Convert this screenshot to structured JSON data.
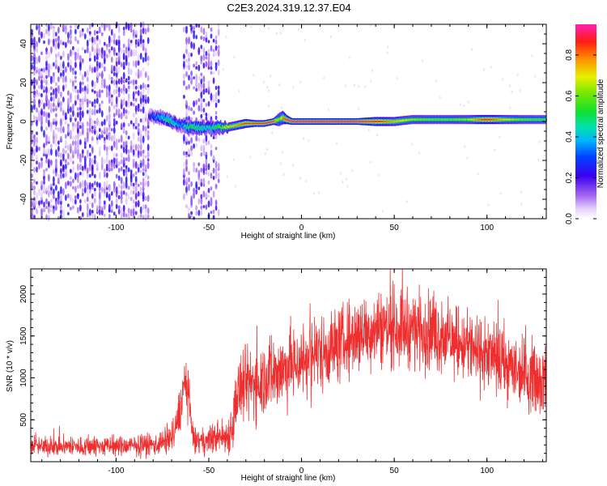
{
  "title": "C2E3.2024.319.12.37.E04",
  "colors": {
    "snr_line": "#ee2f2f",
    "axis": "#000000",
    "colormap": [
      "#ffffff",
      "#cf9ef7",
      "#7a2be0",
      "#4b00e8",
      "#0030ff",
      "#00c8ff",
      "#00e08a",
      "#29e02b",
      "#d6f000",
      "#ff8a00",
      "#ff2000",
      "#ff1fb4"
    ]
  },
  "chart_data": [
    {
      "type": "heatmap",
      "title": "C2E3.2024.319.12.37.E04",
      "xlabel": "Height of straight line (km)",
      "ylabel": "Frequency (Hz)",
      "xlim": [
        -146,
        132
      ],
      "ylim": [
        -50,
        50
      ],
      "xticks": [
        -100,
        -50,
        0,
        50,
        100
      ],
      "yticks": [
        -40,
        -20,
        0,
        20,
        40
      ],
      "grid": false,
      "colorbar": {
        "label": "Normalized spectral amplitude",
        "range": [
          0,
          0.95
        ],
        "ticks": [
          0.0,
          0.2,
          0.4,
          0.6,
          0.8
        ]
      },
      "noise_regions_x": [
        [
          -146,
          -82
        ],
        [
          -64,
          -44
        ]
      ],
      "ridge": {
        "x": [
          -82,
          -75,
          -70,
          -65,
          -60,
          -55,
          -50,
          -45,
          -40,
          -35,
          -30,
          -25,
          -20,
          -15,
          -12,
          -10,
          -8,
          -5,
          0,
          10,
          20,
          30,
          40,
          50,
          60,
          70,
          80,
          90,
          100,
          110,
          120,
          132
        ],
        "freq": [
          3,
          2,
          0,
          -2,
          -3,
          -3,
          -3,
          -3,
          -3,
          -2,
          -1,
          -1,
          -1,
          0,
          1,
          2,
          1,
          0,
          0,
          0,
          0,
          0,
          0,
          0,
          1,
          1,
          1,
          1,
          1,
          1,
          1,
          1
        ],
        "amplitude": [
          0.25,
          0.45,
          0.5,
          0.35,
          0.55,
          0.5,
          0.45,
          0.55,
          0.7,
          0.75,
          0.85,
          0.85,
          0.9,
          0.9,
          0.6,
          0.75,
          0.9,
          0.95,
          0.95,
          0.95,
          0.95,
          0.95,
          0.9,
          0.75,
          0.65,
          0.6,
          0.6,
          0.65,
          0.9,
          0.7,
          0.6,
          0.55
        ],
        "halfwidth": [
          3,
          3,
          3,
          3,
          3,
          3,
          3,
          3,
          2,
          2,
          2,
          1.5,
          1.5,
          1.5,
          3,
          3,
          2,
          1.5,
          1.5,
          1.5,
          1.5,
          1.5,
          2,
          2,
          2,
          2,
          2,
          2,
          2,
          2,
          2,
          2
        ]
      }
    },
    {
      "type": "line",
      "xlabel": "Height of straight line (km)",
      "ylabel": "SNR (10 * v/v)",
      "xlim": [
        -146,
        132
      ],
      "ylim": [
        0,
        2300
      ],
      "xticks": [
        -100,
        -50,
        0,
        50,
        100
      ],
      "yticks": [
        500,
        1000,
        1500,
        2000
      ],
      "grid": false,
      "envelope": {
        "x": [
          -146,
          -120,
          -100,
          -80,
          -72,
          -68,
          -65,
          -63,
          -61,
          -59,
          -57,
          -50,
          -45,
          -40,
          -37,
          -35,
          -30,
          -20,
          -10,
          0,
          10,
          20,
          30,
          40,
          50,
          60,
          70,
          80,
          90,
          100,
          110,
          120,
          132
        ],
        "mean": [
          180,
          180,
          180,
          200,
          250,
          350,
          700,
          950,
          800,
          350,
          230,
          250,
          300,
          300,
          450,
          800,
          900,
          1000,
          1100,
          1200,
          1300,
          1400,
          1500,
          1600,
          1600,
          1600,
          1550,
          1450,
          1350,
          1250,
          1150,
          1050,
          950
        ],
        "spread": [
          120,
          130,
          130,
          140,
          180,
          250,
          300,
          350,
          300,
          200,
          150,
          180,
          220,
          250,
          350,
          450,
          500,
          500,
          500,
          500,
          500,
          500,
          500,
          500,
          500,
          500,
          500,
          450,
          450,
          450,
          450,
          450,
          450
        ]
      }
    }
  ]
}
